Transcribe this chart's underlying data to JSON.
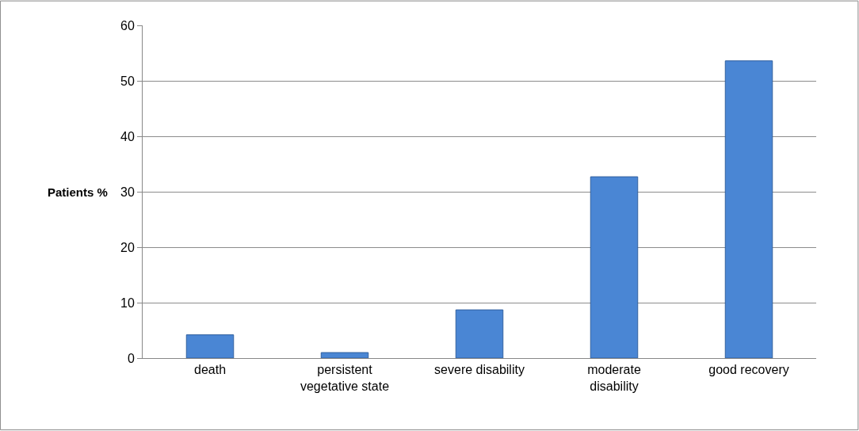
{
  "chart_data": {
    "type": "bar",
    "ylabel": "Patients %",
    "categories": [
      "death",
      "persistent vegetative state",
      "severe disability",
      "moderate disability",
      "good recovery"
    ],
    "values": [
      4.2,
      1.0,
      8.7,
      32.7,
      53.6
    ],
    "color": "#4a86d4",
    "ylim": [
      0,
      60
    ],
    "yticks": [
      0,
      10,
      20,
      30,
      40,
      50,
      60
    ],
    "grid": "y",
    "legend": false
  }
}
